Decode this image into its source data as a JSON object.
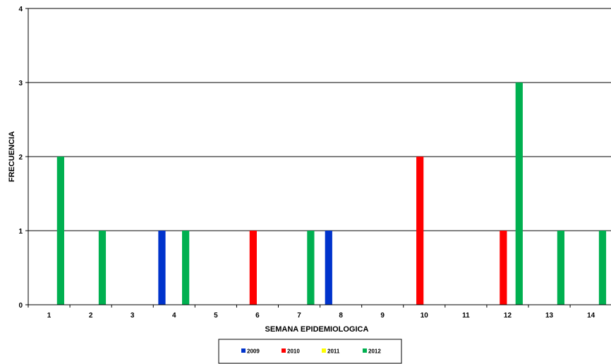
{
  "chart_data": {
    "type": "bar",
    "categories": [
      "1",
      "2",
      "3",
      "4",
      "5",
      "6",
      "7",
      "8",
      "9",
      "10",
      "11",
      "12",
      "13",
      "14"
    ],
    "series": [
      {
        "name": "2009",
        "color": "#0033CC",
        "values": [
          0,
          0,
          0,
          1,
          0,
          0,
          0,
          1,
          0,
          0,
          0,
          0,
          0,
          0
        ]
      },
      {
        "name": "2010",
        "color": "#FF0000",
        "values": [
          0,
          0,
          0,
          0,
          0,
          1,
          0,
          0,
          0,
          2,
          0,
          1,
          0,
          0
        ]
      },
      {
        "name": "2011",
        "color": "#FFFF00",
        "values": [
          0,
          0,
          0,
          0,
          0,
          0,
          0,
          0,
          0,
          0,
          0,
          0,
          0,
          0
        ]
      },
      {
        "name": "2012",
        "color": "#00B050",
        "values": [
          2,
          1,
          0,
          1,
          0,
          0,
          1,
          0,
          0,
          0,
          0,
          3,
          1,
          1
        ]
      }
    ],
    "title": "",
    "xlabel": "SEMANA EPIDEMIOLOGICA",
    "ylabel": "FRECUENCIA",
    "ylim": [
      0,
      4
    ],
    "yticks": [
      "0",
      "1",
      "2",
      "3",
      "4"
    ],
    "grid": true,
    "legend": "bottom"
  }
}
